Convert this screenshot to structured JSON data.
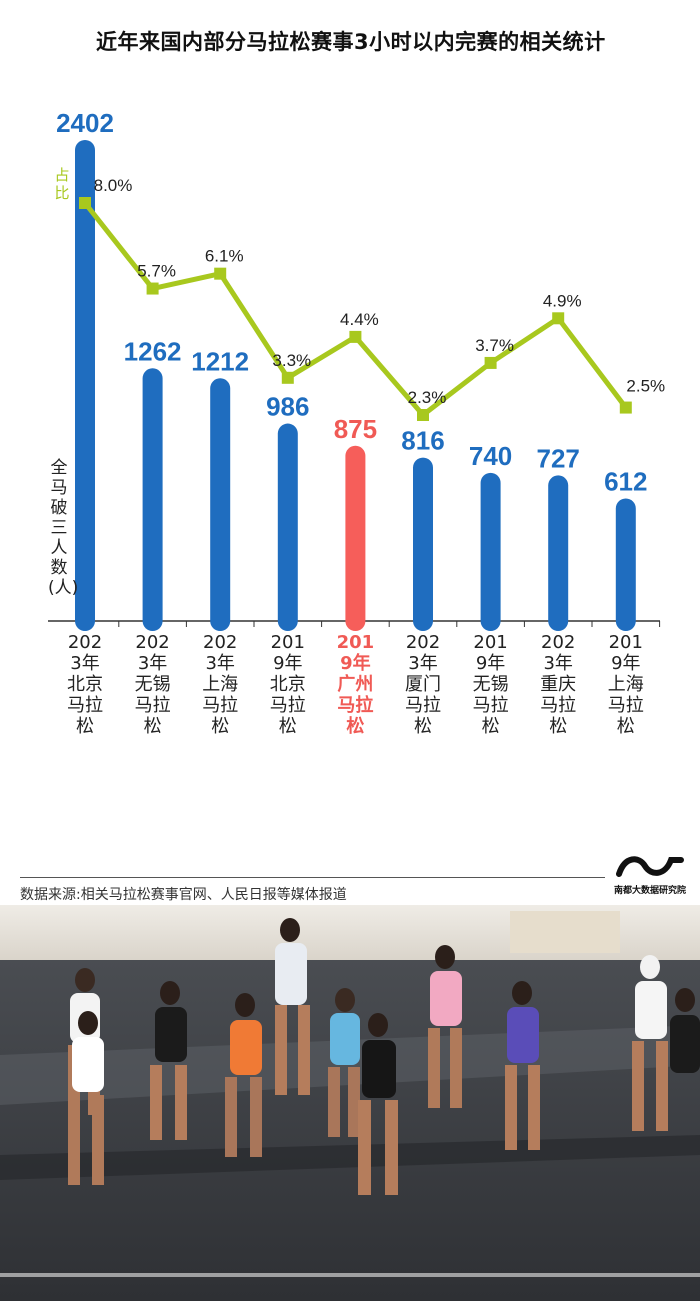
{
  "title": "近年来国内部分马拉松赛事3小时以内完赛的相关统计",
  "source": "数据来源:相关马拉松赛事官网、人民日报等媒体报道",
  "brand": "南都大数据研究院",
  "colors": {
    "bar": "#1f6dbf",
    "bar_highlight": "#f65e5a",
    "line": "#a8c81e",
    "label_blue": "#1f6dbf",
    "label_red": "#f05a55"
  },
  "chart_data": {
    "type": "bar",
    "title": "近年来国内部分马拉松赛事3小时以内完赛的相关统计",
    "categories": [
      "2023年北京马拉松",
      "2023年无锡马拉松",
      "2023年上海马拉松",
      "2019年北京马拉松",
      "2019年广州马拉松",
      "2023年厦门马拉松",
      "2019年无锡马拉松",
      "2023年重庆马拉松",
      "2019年上海马拉松"
    ],
    "highlight_index": 4,
    "series": [
      {
        "name": "全马破三人数(人)",
        "type": "bar",
        "values": [
          2402,
          1262,
          1212,
          986,
          875,
          816,
          740,
          727,
          612
        ],
        "labels": [
          "2402",
          "1262",
          "1212",
          "986",
          "875",
          "816",
          "740",
          "727",
          "612"
        ]
      },
      {
        "name": "占比",
        "type": "line",
        "values": [
          8.0,
          5.7,
          6.1,
          3.3,
          4.4,
          2.3,
          3.7,
          4.9,
          2.5
        ],
        "labels": [
          "8.0%",
          "5.7%",
          "6.1%",
          "3.3%",
          "4.4%",
          "2.3%",
          "3.7%",
          "4.9%",
          "2.5%"
        ]
      }
    ],
    "ylabel": "全马破三人数(人)",
    "y2label": "占比",
    "ylim": [
      0,
      2402
    ],
    "y2lim": [
      0,
      8.0
    ],
    "grid": false,
    "legend": "none"
  }
}
